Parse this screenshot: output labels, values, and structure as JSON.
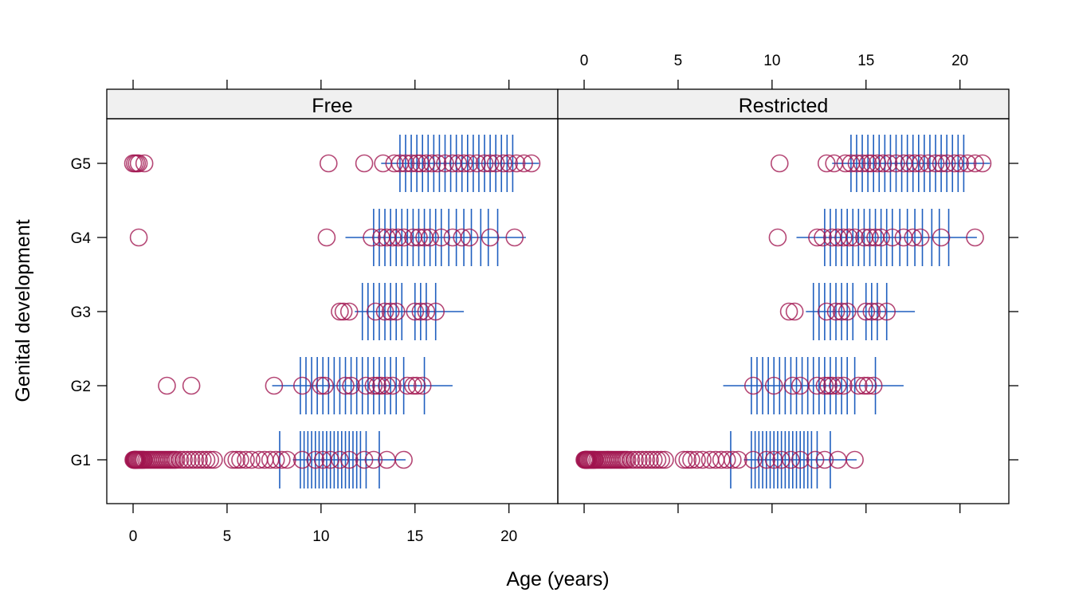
{
  "chart_data": {
    "type": "scatter",
    "layout": "trellis",
    "xlabel": "Age (years)",
    "ylabel": "Genital development",
    "xlim": [
      -1.4,
      22.6
    ],
    "x_ticks": [
      0,
      5,
      10,
      15,
      20
    ],
    "y_categories": [
      "G1",
      "G2",
      "G3",
      "G4",
      "G5"
    ],
    "colors": {
      "points": "#A0134E",
      "rug": "#1F5FBF",
      "strip": "#F0F0F0"
    },
    "panels": [
      {
        "name": "Free",
        "points": {
          "G1": [
            0.02,
            0.05,
            0.08,
            0.1,
            0.12,
            0.15,
            0.18,
            0.2,
            0.25,
            0.3,
            0.35,
            0.4,
            0.45,
            0.5,
            0.55,
            0.6,
            0.7,
            0.8,
            0.9,
            1.0,
            1.1,
            1.2,
            1.3,
            1.4,
            1.5,
            1.6,
            1.7,
            1.8,
            1.9,
            2.0,
            2.1,
            2.2,
            2.3,
            2.5,
            2.7,
            2.9,
            3.1,
            3.3,
            3.5,
            3.7,
            3.9,
            4.1,
            4.3,
            5.3,
            5.5,
            5.7,
            6.0,
            6.3,
            6.7,
            7.0,
            7.3,
            7.6,
            7.9,
            8.2,
            9.0,
            9.7,
            10.1,
            10.5,
            11.0,
            11.5,
            12.3,
            12.8,
            13.5,
            14.4
          ],
          "G2": [
            1.8,
            3.1,
            7.5,
            9.0,
            10.0,
            10.2,
            11.3,
            11.6,
            12.4,
            12.8,
            13.0,
            13.2,
            13.5,
            13.8,
            14.6,
            14.9,
            15.1,
            15.4
          ],
          "G3": [
            11.0,
            11.2,
            11.5,
            12.9,
            13.4,
            13.7,
            14.0,
            15.0,
            15.3,
            15.6,
            16.1
          ],
          "G4": [
            0.3,
            10.3,
            12.7,
            13.2,
            13.5,
            13.8,
            14.1,
            14.4,
            14.9,
            15.2,
            15.5,
            15.8,
            16.4,
            17.0,
            17.5,
            17.9,
            19.0,
            20.3
          ],
          "G5": [
            0.0,
            0.1,
            0.2,
            0.3,
            0.6,
            10.4,
            12.3,
            13.3,
            13.9,
            14.2,
            14.5,
            14.8,
            15.1,
            15.3,
            15.6,
            15.9,
            16.2,
            16.6,
            17.0,
            17.3,
            17.6,
            17.9,
            18.3,
            18.7,
            19.0,
            19.3,
            19.7,
            20.0,
            20.4,
            20.8,
            21.2
          ]
        },
        "rug": {
          "G1": [
            7.8,
            8.9,
            9.1,
            9.3,
            9.5,
            9.7,
            9.9,
            10.1,
            10.3,
            10.5,
            10.7,
            10.9,
            11.1,
            11.3,
            11.5,
            11.7,
            11.9,
            12.1,
            12.4,
            13.1
          ],
          "G2": [
            8.9,
            9.2,
            9.5,
            9.8,
            10.1,
            10.4,
            10.7,
            11.0,
            11.3,
            11.6,
            11.9,
            12.2,
            12.5,
            12.8,
            13.1,
            13.4,
            13.7,
            14.0,
            14.4,
            15.5
          ],
          "G3": [
            12.2,
            12.5,
            12.8,
            13.1,
            13.4,
            13.7,
            14.0,
            14.3,
            15.0,
            15.3,
            15.6,
            16.1
          ],
          "G4": [
            12.8,
            13.1,
            13.4,
            13.7,
            14.0,
            14.3,
            14.6,
            14.9,
            15.2,
            15.5,
            15.8,
            16.1,
            16.4,
            16.8,
            17.2,
            17.6,
            18.0,
            18.5,
            18.9,
            19.4
          ],
          "G5": [
            14.2,
            14.5,
            14.8,
            15.1,
            15.4,
            15.7,
            16.0,
            16.3,
            16.6,
            16.9,
            17.2,
            17.5,
            17.8,
            18.1,
            18.4,
            18.7,
            19.0,
            19.3,
            19.6,
            19.9,
            20.2
          ]
        },
        "ranges": {
          "G1": [
            8.5,
            14.5
          ],
          "G2": [
            7.4,
            17.0
          ],
          "G3": [
            11.8,
            17.6
          ],
          "G4": [
            11.3,
            20.9
          ],
          "G5": [
            13.2,
            21.6
          ]
        }
      },
      {
        "name": "Restricted",
        "points": {
          "G1": [
            0.02,
            0.05,
            0.08,
            0.1,
            0.12,
            0.15,
            0.18,
            0.2,
            0.25,
            0.3,
            0.35,
            0.4,
            0.45,
            0.5,
            0.55,
            0.6,
            0.7,
            0.8,
            0.9,
            1.0,
            1.1,
            1.2,
            1.3,
            1.4,
            1.5,
            1.6,
            1.7,
            1.8,
            1.9,
            2.0,
            2.1,
            2.2,
            2.3,
            2.5,
            2.7,
            2.9,
            3.1,
            3.3,
            3.5,
            3.7,
            3.9,
            4.1,
            4.3,
            5.3,
            5.5,
            5.7,
            6.0,
            6.3,
            6.7,
            7.0,
            7.3,
            7.6,
            7.9,
            8.2,
            9.0,
            9.7,
            10.1,
            10.5,
            11.0,
            11.5,
            12.3,
            12.8,
            13.5,
            14.4
          ],
          "G2": [
            9.0,
            10.1,
            11.1,
            11.5,
            12.4,
            12.8,
            13.0,
            13.2,
            13.5,
            13.8,
            14.6,
            14.9,
            15.1,
            15.4
          ],
          "G3": [
            10.9,
            11.2,
            12.9,
            13.4,
            13.7,
            14.0,
            15.0,
            15.3,
            15.6,
            16.1
          ],
          "G4": [
            10.3,
            12.4,
            12.7,
            13.2,
            13.5,
            13.8,
            14.1,
            14.4,
            14.9,
            15.2,
            15.5,
            15.8,
            16.4,
            17.0,
            17.5,
            17.9,
            19.0,
            20.8
          ],
          "G5": [
            10.4,
            12.9,
            13.3,
            13.9,
            14.2,
            14.5,
            14.8,
            15.1,
            15.3,
            15.6,
            15.9,
            16.2,
            16.6,
            17.0,
            17.3,
            17.6,
            17.9,
            18.3,
            18.7,
            19.0,
            19.3,
            19.7,
            20.0,
            20.4,
            20.8,
            21.2
          ]
        },
        "rug": {
          "G1": [
            7.8,
            8.9,
            9.1,
            9.3,
            9.5,
            9.7,
            9.9,
            10.1,
            10.3,
            10.5,
            10.7,
            10.9,
            11.1,
            11.3,
            11.5,
            11.7,
            11.9,
            12.1,
            12.4,
            13.1
          ],
          "G2": [
            8.9,
            9.2,
            9.5,
            9.8,
            10.1,
            10.4,
            10.7,
            11.0,
            11.3,
            11.6,
            11.9,
            12.2,
            12.5,
            12.8,
            13.1,
            13.4,
            13.7,
            14.0,
            14.4,
            15.5
          ],
          "G3": [
            12.2,
            12.5,
            12.8,
            13.1,
            13.4,
            13.7,
            14.0,
            14.3,
            15.0,
            15.3,
            15.6,
            16.1
          ],
          "G4": [
            12.8,
            13.1,
            13.4,
            13.7,
            14.0,
            14.3,
            14.6,
            14.9,
            15.2,
            15.5,
            15.8,
            16.1,
            16.4,
            16.8,
            17.2,
            17.6,
            18.0,
            18.5,
            18.9,
            19.4
          ],
          "G5": [
            14.2,
            14.5,
            14.8,
            15.1,
            15.4,
            15.7,
            16.0,
            16.3,
            16.6,
            16.9,
            17.2,
            17.5,
            17.8,
            18.1,
            18.4,
            18.7,
            19.0,
            19.3,
            19.6,
            19.9,
            20.2
          ]
        },
        "ranges": {
          "G1": [
            8.5,
            14.5
          ],
          "G2": [
            7.4,
            17.0
          ],
          "G3": [
            11.8,
            17.6
          ],
          "G4": [
            11.3,
            20.9
          ],
          "G5": [
            13.2,
            21.6
          ]
        }
      }
    ]
  }
}
